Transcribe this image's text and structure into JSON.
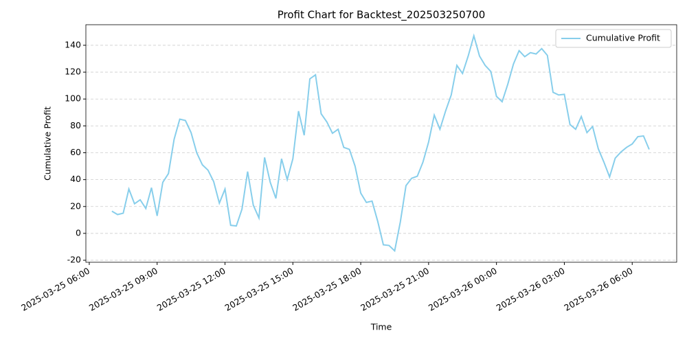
{
  "chart_data": {
    "type": "line",
    "title": "Profit Chart for Backtest_202503250700",
    "xlabel": "Time",
    "ylabel": "Cumulative Profit",
    "x": [
      "2025-03-25 07:00",
      "2025-03-25 07:15",
      "2025-03-25 07:30",
      "2025-03-25 07:45",
      "2025-03-25 08:00",
      "2025-03-25 08:15",
      "2025-03-25 08:30",
      "2025-03-25 08:45",
      "2025-03-25 09:00",
      "2025-03-25 09:15",
      "2025-03-25 09:30",
      "2025-03-25 09:45",
      "2025-03-25 10:00",
      "2025-03-25 10:15",
      "2025-03-25 10:30",
      "2025-03-25 10:45",
      "2025-03-25 11:00",
      "2025-03-25 11:15",
      "2025-03-25 11:30",
      "2025-03-25 11:45",
      "2025-03-25 12:00",
      "2025-03-25 12:15",
      "2025-03-25 12:30",
      "2025-03-25 12:45",
      "2025-03-25 13:00",
      "2025-03-25 13:15",
      "2025-03-25 13:30",
      "2025-03-25 13:45",
      "2025-03-25 14:00",
      "2025-03-25 14:15",
      "2025-03-25 14:30",
      "2025-03-25 14:45",
      "2025-03-25 15:00",
      "2025-03-25 15:15",
      "2025-03-25 15:30",
      "2025-03-25 15:45",
      "2025-03-25 16:00",
      "2025-03-25 16:15",
      "2025-03-25 16:30",
      "2025-03-25 16:45",
      "2025-03-25 17:00",
      "2025-03-25 17:15",
      "2025-03-25 17:30",
      "2025-03-25 17:45",
      "2025-03-25 18:00",
      "2025-03-25 18:15",
      "2025-03-25 18:30",
      "2025-03-25 18:45",
      "2025-03-25 19:00",
      "2025-03-25 19:15",
      "2025-03-25 19:30",
      "2025-03-25 19:45",
      "2025-03-25 20:00",
      "2025-03-25 20:15",
      "2025-03-25 20:30",
      "2025-03-25 20:45",
      "2025-03-25 21:00",
      "2025-03-25 21:15",
      "2025-03-25 21:30",
      "2025-03-25 21:45",
      "2025-03-25 22:00",
      "2025-03-25 22:15",
      "2025-03-25 22:30",
      "2025-03-25 22:45",
      "2025-03-25 23:00",
      "2025-03-25 23:15",
      "2025-03-25 23:30",
      "2025-03-25 23:45",
      "2025-03-26 00:00",
      "2025-03-26 00:15",
      "2025-03-26 00:30",
      "2025-03-26 00:45",
      "2025-03-26 01:00",
      "2025-03-26 01:15",
      "2025-03-26 01:30",
      "2025-03-26 01:45",
      "2025-03-26 02:00",
      "2025-03-26 02:15",
      "2025-03-26 02:30",
      "2025-03-26 02:45",
      "2025-03-26 03:00",
      "2025-03-26 03:15",
      "2025-03-26 03:30",
      "2025-03-26 03:45",
      "2025-03-26 04:00",
      "2025-03-26 04:15",
      "2025-03-26 04:30",
      "2025-03-26 04:45",
      "2025-03-26 05:00",
      "2025-03-26 05:15",
      "2025-03-26 05:30",
      "2025-03-26 05:45",
      "2025-03-26 06:00",
      "2025-03-26 06:15",
      "2025-03-26 06:30",
      "2025-03-26 06:45"
    ],
    "series": [
      {
        "name": "Cumulative Profit",
        "color": "#87ceeb",
        "values": [
          16.5,
          14,
          15,
          33,
          22,
          25,
          18.5,
          34,
          13,
          38,
          44.5,
          70,
          85,
          84,
          75,
          60,
          51,
          47,
          38.5,
          22.5,
          33,
          6,
          5.5,
          18,
          46,
          21,
          11.5,
          56.5,
          38,
          26,
          55.5,
          40,
          55.5,
          91,
          73,
          115,
          118,
          89,
          83,
          74.5,
          77.5,
          64,
          62.5,
          50,
          30,
          23,
          24,
          9,
          -8.5,
          -9,
          -13,
          8.5,
          35.5,
          41,
          42.5,
          53,
          68,
          88,
          77.5,
          91,
          103,
          125,
          119,
          132,
          147,
          132,
          125,
          120.5,
          102,
          98,
          111,
          126,
          136,
          131.5,
          134.5,
          133.5,
          137.5,
          132.5,
          105,
          103,
          103.5,
          81,
          77.5,
          87,
          75,
          79.5,
          63,
          53,
          42,
          56,
          60.5,
          64,
          66.5,
          72,
          72.5,
          62.5
        ]
      }
    ],
    "xlim": [
      "2025-03-25 05:51",
      "2025-03-26 07:58"
    ],
    "xticks": [
      "2025-03-25 06:00",
      "2025-03-25 09:00",
      "2025-03-25 12:00",
      "2025-03-25 15:00",
      "2025-03-25 18:00",
      "2025-03-25 21:00",
      "2025-03-26 00:00",
      "2025-03-26 03:00",
      "2025-03-26 06:00"
    ],
    "ylim": [
      -21.5,
      155.3
    ],
    "yticks": [
      -20,
      0,
      20,
      40,
      60,
      80,
      100,
      120,
      140
    ],
    "grid": true,
    "legend": "upper right"
  }
}
